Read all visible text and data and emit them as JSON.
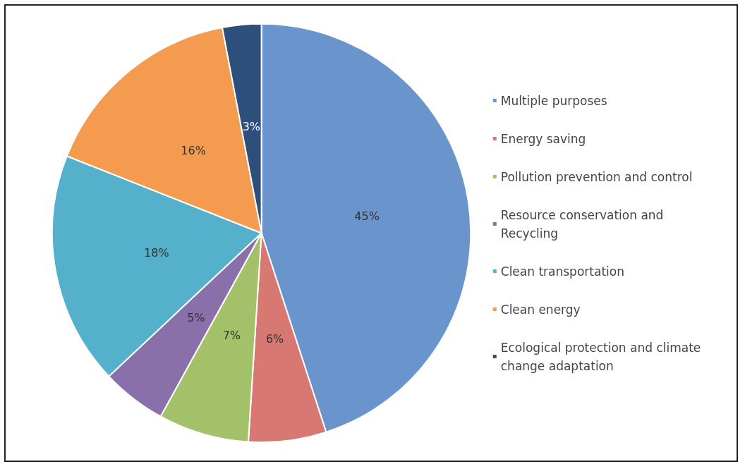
{
  "chart_data": {
    "type": "pie",
    "categories": [
      "Multiple purposes",
      "Energy saving",
      "Pollution prevention and control",
      "Resource conservation and Recycling",
      "Clean transportation",
      "Clean energy",
      "Ecological protection and climate change adaptation"
    ],
    "values": [
      45,
      6,
      7,
      5,
      18,
      16,
      3
    ],
    "value_labels": [
      "45%",
      "6%",
      "7%",
      "5%",
      "18%",
      "16%",
      "3%"
    ],
    "colors": [
      "#6a95cc",
      "#d77873",
      "#a3c169",
      "#8a70ab",
      "#55b1cb",
      "#f59b50",
      "#2c4f7c"
    ],
    "legend": "right"
  }
}
